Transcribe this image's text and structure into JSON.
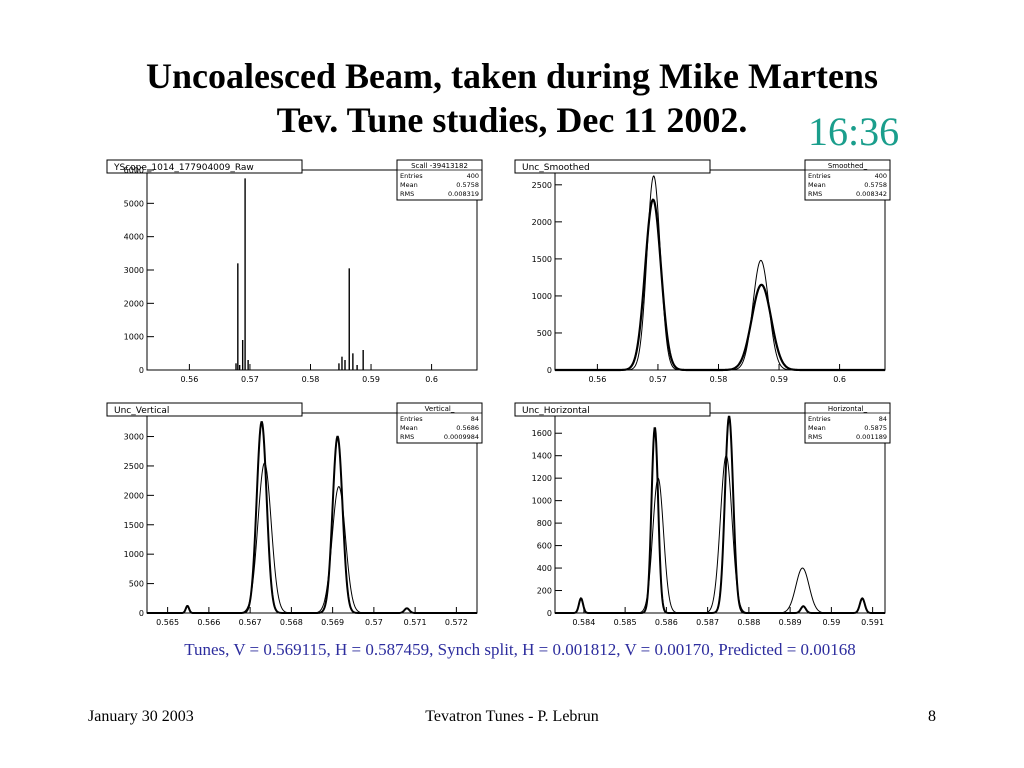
{
  "slide": {
    "title_line1": "Uncoalesced Beam, taken during Mike Martens",
    "title_line2": "Tev. Tune studies, Dec 11 2002.",
    "time": "16:36",
    "caption": "Tunes, V = 0.569115, H = 0.587459, Synch split, H = 0.001812, V = 0.00170,  Predicted = 0.00168",
    "footer_left": "January 30  2003",
    "footer_center": "Tevatron Tunes - P. Lebrun",
    "footer_right": "8",
    "caption_color": "#2d2d9e",
    "time_color": "#1a9e8c"
  },
  "chart_data": [
    {
      "type": "histogram",
      "title": "YScope_1014_177904009_Raw",
      "stats": {
        "name": "Scall -39413182",
        "entries": "400",
        "mean": "0.5758",
        "rms": "0.008319"
      },
      "xlim": [
        0.553,
        0.6075
      ],
      "ylim": [
        0,
        6000
      ],
      "xticks": [
        0.56,
        0.57,
        0.58,
        0.59,
        0.6
      ],
      "xtick_labels": [
        "0.56",
        "0.57",
        "0.58",
        "0.59",
        "0.6"
      ],
      "yticks": [
        0,
        1000,
        2000,
        3000,
        4000,
        5000,
        6000
      ],
      "ytick_labels": [
        "0",
        "1000",
        "2000",
        "3000",
        "4000",
        "5000",
        "6000"
      ],
      "series": [
        {
          "style": "spikes",
          "x": [
            0.5677,
            0.568,
            0.5683,
            0.5688,
            0.5692,
            0.5697,
            0.5847,
            0.5852,
            0.5857,
            0.5864,
            0.587,
            0.5877,
            0.5887
          ],
          "values": [
            200,
            3200,
            150,
            900,
            5750,
            300,
            200,
            400,
            300,
            3050,
            500,
            150,
            600
          ]
        }
      ]
    },
    {
      "type": "histogram",
      "title": "Unc_Smoothed",
      "stats": {
        "name": "Smoothed_",
        "entries": "400",
        "mean": "0.5758",
        "rms": "0.008342"
      },
      "xlim": [
        0.553,
        0.6075
      ],
      "ylim": [
        0,
        2700
      ],
      "xticks": [
        0.56,
        0.57,
        0.58,
        0.59,
        0.6
      ],
      "xtick_labels": [
        "0.56",
        "0.57",
        "0.58",
        "0.59",
        "0.6"
      ],
      "yticks": [
        0,
        500,
        1000,
        1500,
        2000,
        2500
      ],
      "ytick_labels": [
        "0",
        "500",
        "1000",
        "1500",
        "2000",
        "2500"
      ],
      "series": [
        {
          "style": "gauss",
          "peaks": [
            {
              "mu": 0.5692,
              "sigma": 0.0013,
              "amp": 2300
            },
            {
              "mu": 0.5871,
              "sigma": 0.0016,
              "amp": 1150
            }
          ],
          "width": 2.2
        },
        {
          "style": "gauss",
          "peaks": [
            {
              "mu": 0.5693,
              "sigma": 0.0011,
              "amp": 2620
            },
            {
              "mu": 0.587,
              "sigma": 0.0013,
              "amp": 1480
            }
          ],
          "width": 1.0
        }
      ]
    },
    {
      "type": "histogram",
      "title": "Unc_Vertical",
      "stats": {
        "name": "Vertical_",
        "entries": "84",
        "mean": "0.5686",
        "rms": "0.0009984"
      },
      "xlim": [
        0.5645,
        0.5725
      ],
      "ylim": [
        0,
        3400
      ],
      "xticks": [
        0.565,
        0.566,
        0.567,
        0.568,
        0.569,
        0.57,
        0.571,
        0.572
      ],
      "xtick_labels": [
        "0.565",
        "0.566",
        "0.567",
        "0.568",
        "0.569",
        "0.57",
        "0.571",
        "0.572"
      ],
      "yticks": [
        0,
        500,
        1000,
        1500,
        2000,
        2500,
        3000
      ],
      "ytick_labels": [
        "0",
        "500",
        "1000",
        "1500",
        "2000",
        "2500",
        "3000"
      ],
      "series": [
        {
          "style": "gauss",
          "peaks": [
            {
              "mu": 0.56728,
              "sigma": 0.00012,
              "amp": 3250
            },
            {
              "mu": 0.56912,
              "sigma": 0.00012,
              "amp": 3000
            },
            {
              "mu": 0.56548,
              "sigma": 4e-05,
              "amp": 120
            },
            {
              "mu": 0.5708,
              "sigma": 6e-05,
              "amp": 80
            }
          ],
          "width": 2.0
        },
        {
          "style": "gauss",
          "peaks": [
            {
              "mu": 0.56735,
              "sigma": 0.00016,
              "amp": 2550
            },
            {
              "mu": 0.56915,
              "sigma": 0.00016,
              "amp": 2150
            }
          ],
          "width": 1.0
        }
      ]
    },
    {
      "type": "histogram",
      "title": "Unc_Horizontal",
      "stats": {
        "name": "Horizontal_",
        "entries": "84",
        "mean": "0.5875",
        "rms": "0.001189"
      },
      "xlim": [
        0.5833,
        0.5913
      ],
      "ylim": [
        0,
        1780
      ],
      "xticks": [
        0.584,
        0.585,
        0.586,
        0.587,
        0.588,
        0.589,
        0.59,
        0.591
      ],
      "xtick_labels": [
        "0.584",
        "0.585",
        "0.586",
        "0.587",
        "0.588",
        "0.589",
        "0.59",
        "0.591"
      ],
      "yticks": [
        0,
        200,
        400,
        600,
        800,
        1000,
        1200,
        1400,
        1600
      ],
      "ytick_labels": [
        "0",
        "200",
        "400",
        "600",
        "800",
        "1000",
        "1200",
        "1400",
        "1600"
      ],
      "series": [
        {
          "style": "gauss",
          "peaks": [
            {
              "mu": 0.58572,
              "sigma": 8e-05,
              "amp": 1650
            },
            {
              "mu": 0.58752,
              "sigma": 0.0001,
              "amp": 1750
            },
            {
              "mu": 0.58393,
              "sigma": 5e-05,
              "amp": 130
            },
            {
              "mu": 0.59075,
              "sigma": 6e-05,
              "amp": 130
            },
            {
              "mu": 0.58932,
              "sigma": 6e-05,
              "amp": 60
            }
          ],
          "width": 2.0
        },
        {
          "style": "gauss",
          "peaks": [
            {
              "mu": 0.5858,
              "sigma": 0.00013,
              "amp": 1200
            },
            {
              "mu": 0.58745,
              "sigma": 0.00014,
              "amp": 1400
            },
            {
              "mu": 0.5893,
              "sigma": 0.00016,
              "amp": 400
            }
          ],
          "width": 1.0
        }
      ]
    }
  ]
}
